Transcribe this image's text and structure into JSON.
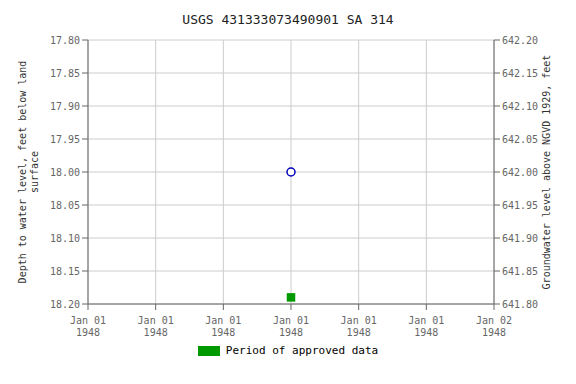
{
  "chart_data": {
    "type": "scatter",
    "title": "USGS 431333073490901 SA 314",
    "ylabel": "Depth to water level, feet below land\nsurface",
    "y2label": "Groundwater level above NGVD 1929, feet",
    "categories": [
      "Jan 01\n1948",
      "Jan 01\n1948",
      "Jan 01\n1948",
      "Jan 01\n1948",
      "Jan 01\n1948",
      "Jan 01\n1948",
      "Jan 02\n1948"
    ],
    "series": [
      {
        "color": "#0000bb",
        "marker": "open-circle",
        "values": [
          null,
          null,
          null,
          18.0,
          null,
          null,
          null
        ]
      },
      {
        "name": "Period of approved data",
        "color": "#009900",
        "marker": "square",
        "values": [
          null,
          null,
          null,
          18.19,
          null,
          null,
          null
        ]
      }
    ],
    "ylim": [
      18.2,
      17.8
    ],
    "yticks": [
      {
        "value": 17.8,
        "label": "17.80"
      },
      17.85,
      {
        "value": 17.9,
        "label": "17.90"
      },
      17.95,
      {
        "value": 18.0,
        "label": "18.00"
      },
      18.05,
      {
        "value": 18.1,
        "label": "18.10"
      },
      18.15,
      {
        "value": 18.2,
        "label": "18.20"
      }
    ],
    "y2lim": [
      641.8,
      642.2
    ],
    "y2ticks": [
      {
        "value": 642.2,
        "label": "642.20"
      },
      642.15,
      {
        "value": 642.1,
        "label": "642.10"
      },
      642.05,
      {
        "value": 642,
        "label": "642.00"
      },
      641.95,
      {
        "value": 641.9,
        "label": "641.90"
      },
      641.85,
      {
        "value": 641.8,
        "label": "641.80"
      }
    ],
    "grid": true,
    "legend": "bottom"
  }
}
